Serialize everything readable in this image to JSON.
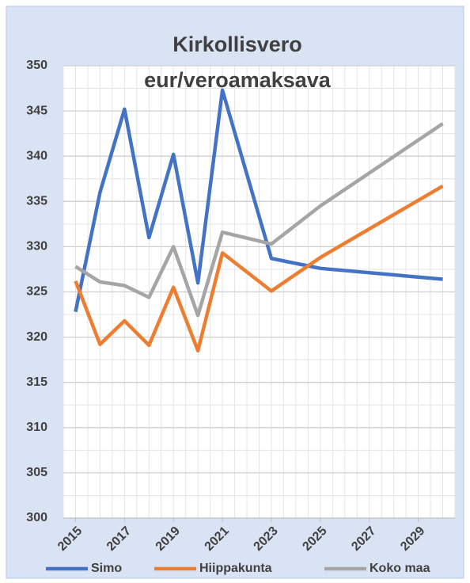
{
  "chart_data": {
    "type": "line",
    "title": "Kirkollisvero",
    "subtitle": "eur/veroamaksava",
    "x": [
      2015,
      2016,
      2017,
      2018,
      2019,
      2020,
      2021,
      2023,
      2025,
      2030
    ],
    "series": [
      {
        "name": "Simo",
        "color": "#4472c4",
        "values": [
          322.8,
          336,
          345.2,
          331,
          340.2,
          326,
          347.3,
          328.7,
          327.6,
          326.4
        ]
      },
      {
        "name": "Hiippakunta",
        "color": "#ed7d31",
        "values": [
          326.2,
          319.2,
          321.8,
          319.1,
          325.5,
          318.5,
          329.3,
          325.1,
          328.8,
          336.7
        ]
      },
      {
        "name": "Koko maa",
        "color": "#a5a5a5",
        "values": [
          327.8,
          326.1,
          325.7,
          324.4,
          330,
          322.4,
          331.6,
          330.3,
          334.5,
          343.6
        ]
      }
    ],
    "xlim": [
      2014.5,
      2030.5
    ],
    "xticks": [
      2015,
      2017,
      2019,
      2021,
      2023,
      2025,
      2027,
      2029
    ],
    "ylim": [
      300,
      350
    ],
    "yticks": [
      300,
      305,
      310,
      315,
      320,
      325,
      330,
      335,
      340,
      345,
      350
    ],
    "grid": true,
    "legend": "bottom"
  }
}
